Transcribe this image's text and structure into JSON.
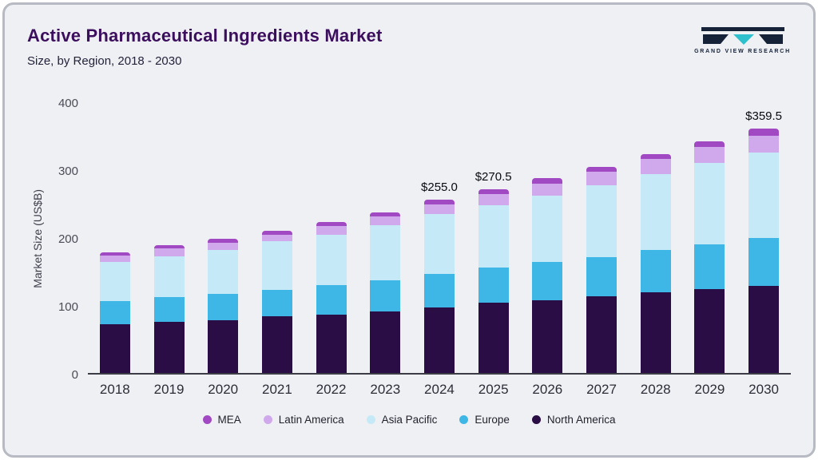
{
  "header": {
    "title": "Active Pharmaceutical Ingredients Market",
    "subtitle": "Size, by Region, 2018 - 2030",
    "logo_text": "GRAND VIEW RESEARCH"
  },
  "chart_data": {
    "type": "bar",
    "stacked": true,
    "title": "Active Pharmaceutical Ingredients Market Size, by Region, 2018 - 2030",
    "xlabel": "",
    "ylabel": "Market Size (US$B)",
    "ylim": [
      0,
      400
    ],
    "yticks": [
      0,
      100,
      200,
      300,
      400
    ],
    "grid": false,
    "legend_position": "bottom",
    "categories": [
      "2018",
      "2019",
      "2020",
      "2021",
      "2022",
      "2023",
      "2024",
      "2025",
      "2026",
      "2027",
      "2028",
      "2029",
      "2030"
    ],
    "series": [
      {
        "name": "North America",
        "color": "#2a0d44",
        "values": [
          72,
          75,
          78,
          83,
          86,
          91,
          97,
          103,
          107,
          113,
          119,
          124,
          128
        ]
      },
      {
        "name": "Europe",
        "color": "#3eb7e7",
        "values": [
          34,
          37,
          39,
          39,
          44,
          45,
          49,
          52,
          56,
          58,
          62,
          66,
          71
        ]
      },
      {
        "name": "Asia Pacific",
        "color": "#c6e9f8",
        "values": [
          58,
          60,
          64,
          72,
          74,
          82,
          88,
          92,
          98,
          105,
          112,
          120,
          126
        ]
      },
      {
        "name": "Latin America",
        "color": "#cfa9ec",
        "values": [
          9,
          11,
          11,
          10,
          12,
          13,
          14,
          16,
          18,
          20,
          22,
          23,
          25
        ]
      },
      {
        "name": "MEA",
        "color": "#a049c2",
        "values": [
          5,
          5,
          6,
          6,
          6,
          6,
          7,
          7.5,
          8,
          8,
          8,
          8,
          9.5
        ]
      }
    ],
    "totals": [
      178,
      188,
      198,
      210,
      222,
      237,
      255,
      270.5,
      287,
      304,
      323,
      341,
      359.5
    ],
    "annotations": [
      {
        "category": "2024",
        "label": "$255.0"
      },
      {
        "category": "2025",
        "label": "$270.5"
      },
      {
        "category": "2030",
        "label": "$359.5"
      }
    ],
    "legend": [
      "MEA",
      "Latin America",
      "Asia Pacific",
      "Europe",
      "North America"
    ]
  }
}
